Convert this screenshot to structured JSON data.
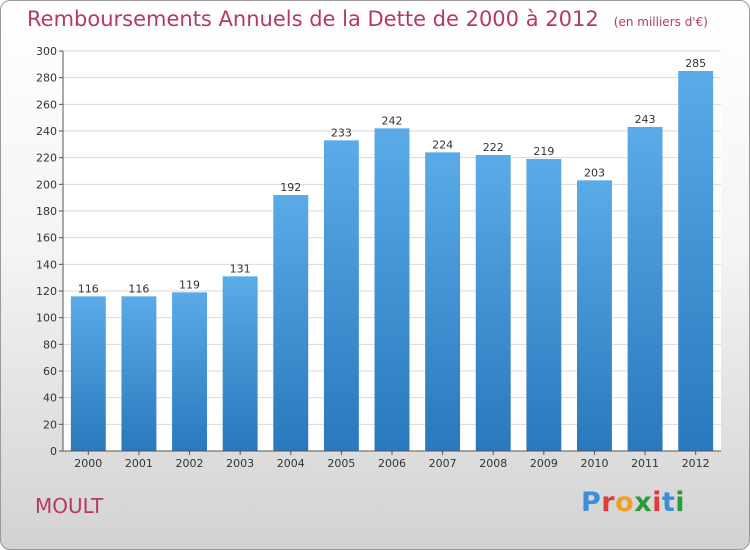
{
  "title": "Remboursements Annuels de la Dette de 2000 à 2012",
  "subtitle": "(en milliers d'€)",
  "location": "MOULT",
  "logo": {
    "letters": [
      "P",
      "r",
      "o",
      "x",
      "i",
      "t",
      "i"
    ],
    "colors": [
      "#3a8fd8",
      "#e23a3a",
      "#f0a020",
      "#2a9a3a",
      "#e23a3a",
      "#3a8fd8",
      "#2a9a3a"
    ]
  },
  "colors": {
    "bar": "#4a9fe0",
    "bar_dark": "#2e7fc4",
    "title": "#b5386a"
  },
  "chart_data": {
    "type": "bar",
    "title": "Remboursements Annuels de la Dette de 2000 à 2012",
    "subtitle": "(en milliers d'€)",
    "xlabel": "",
    "ylabel": "",
    "categories": [
      "2000",
      "2001",
      "2002",
      "2003",
      "2004",
      "2005",
      "2006",
      "2007",
      "2008",
      "2009",
      "2010",
      "2011",
      "2012"
    ],
    "values": [
      116,
      116,
      119,
      131,
      192,
      233,
      242,
      224,
      222,
      219,
      203,
      243,
      285
    ],
    "ylim": [
      0,
      300
    ],
    "yticks": [
      0,
      20,
      40,
      60,
      80,
      100,
      120,
      140,
      160,
      180,
      200,
      220,
      240,
      260,
      280,
      300
    ],
    "grid": true,
    "legend": "none"
  }
}
